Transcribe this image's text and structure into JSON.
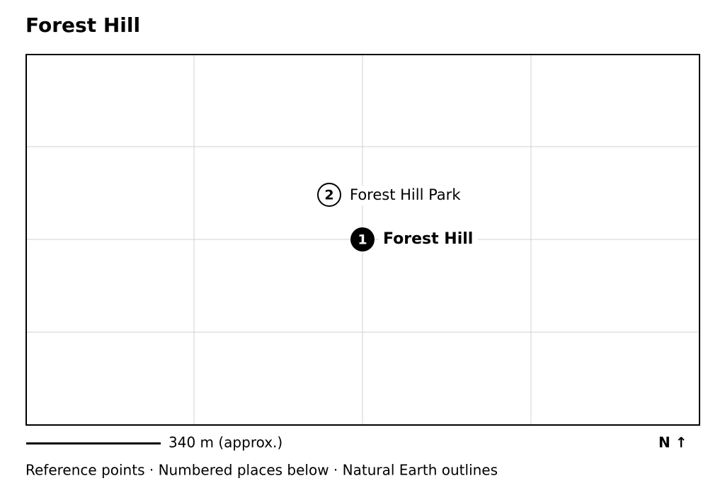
{
  "header": {
    "title": "Forest Hill"
  },
  "map": {
    "markers": [
      {
        "number": "1",
        "label": "Forest Hill"
      },
      {
        "number": "2",
        "label": "Forest Hill Park"
      }
    ]
  },
  "scale": {
    "label": "340 m (approx.)"
  },
  "north": {
    "label": "N ↑"
  },
  "footer": {
    "text": "Reference points · Numbered places below · Natural Earth outlines"
  }
}
